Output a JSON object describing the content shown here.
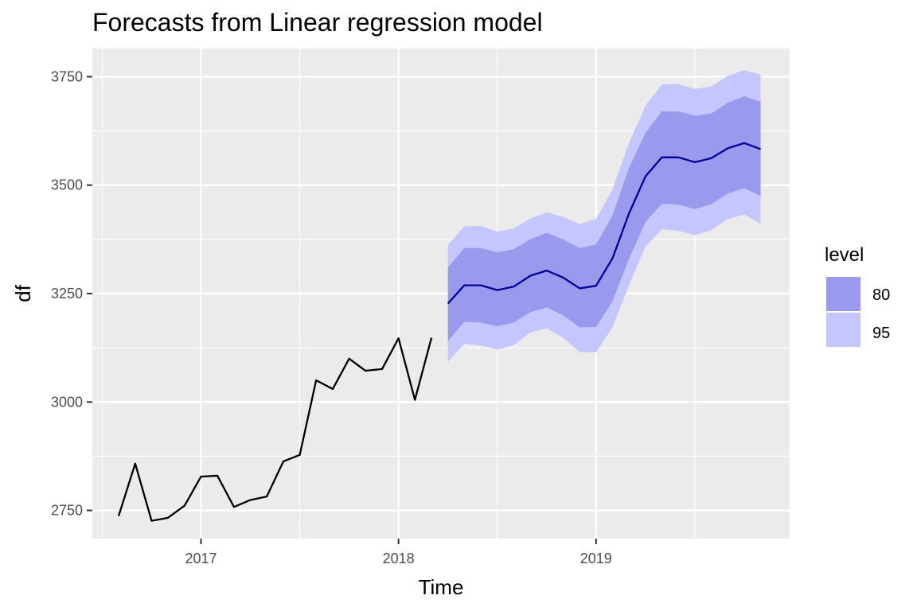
{
  "chart_data": {
    "type": "line",
    "title": "Forecasts from Linear regression model",
    "xlabel": "Time",
    "ylabel": "df",
    "xlim": [
      2016.45,
      2019.98
    ],
    "ylim": [
      2685,
      3815
    ],
    "x_ticks": [
      {
        "value": 2017,
        "label": "2017"
      },
      {
        "value": 2018,
        "label": "2018"
      },
      {
        "value": 2019,
        "label": "2019"
      }
    ],
    "y_ticks": [
      {
        "value": 2750,
        "label": "2750"
      },
      {
        "value": 3000,
        "label": "3000"
      },
      {
        "value": 3250,
        "label": "3250"
      },
      {
        "value": 3500,
        "label": "3500"
      },
      {
        "value": 3750,
        "label": "3750"
      }
    ],
    "grid": true,
    "legend": {
      "title": "level",
      "position": "right",
      "entries": [
        {
          "label": "80",
          "color": "#9999ee"
        },
        {
          "label": "95",
          "color": "#c5c5ff"
        }
      ]
    },
    "colors": {
      "panel": "#ebebeb",
      "grid": "#ffffff",
      "history": "#000000",
      "forecast": "#000099",
      "band80": "#9999ee",
      "band95": "#c5c5ff"
    },
    "history": {
      "x": [
        2016.583,
        2016.667,
        2016.75,
        2016.833,
        2016.917,
        2017.0,
        2017.083,
        2017.167,
        2017.25,
        2017.333,
        2017.417,
        2017.5,
        2017.583,
        2017.667,
        2017.75,
        2017.833,
        2017.917,
        2018.0,
        2018.083,
        2018.167
      ],
      "y": [
        2737,
        2858,
        2726,
        2733,
        2761,
        2828,
        2830,
        2758,
        2774,
        2782,
        2863,
        2878,
        3050,
        3030,
        3100,
        3072,
        3076,
        3147,
        3005,
        3148
      ]
    },
    "forecast": {
      "x": [
        2018.25,
        2018.333,
        2018.417,
        2018.5,
        2018.583,
        2018.667,
        2018.75,
        2018.833,
        2018.917,
        2019.0,
        2019.083,
        2019.167,
        2019.25,
        2019.333,
        2019.417,
        2019.5,
        2019.583,
        2019.667,
        2019.75,
        2019.833
      ],
      "mean": [
        3227,
        3269,
        3269,
        3258,
        3266,
        3291,
        3303,
        3287,
        3262,
        3268,
        3331,
        3435,
        3520,
        3564,
        3564,
        3553,
        3562,
        3585,
        3597,
        3583
      ],
      "lo80": [
        3140,
        3185,
        3183,
        3175,
        3183,
        3207,
        3218,
        3200,
        3172,
        3173,
        3232,
        3330,
        3415,
        3457,
        3455,
        3445,
        3456,
        3481,
        3493,
        3475
      ],
      "hi80": [
        3310,
        3355,
        3355,
        3345,
        3352,
        3375,
        3390,
        3375,
        3355,
        3363,
        3430,
        3540,
        3620,
        3670,
        3670,
        3660,
        3665,
        3690,
        3705,
        3692
      ],
      "lo95": [
        3093,
        3134,
        3130,
        3121,
        3131,
        3160,
        3170,
        3148,
        3115,
        3115,
        3172,
        3270,
        3358,
        3398,
        3395,
        3385,
        3396,
        3422,
        3432,
        3411
      ],
      "hi95": [
        3362,
        3405,
        3406,
        3393,
        3400,
        3423,
        3437,
        3427,
        3410,
        3422,
        3490,
        3598,
        3683,
        3732,
        3733,
        3722,
        3727,
        3752,
        3765,
        3755
      ]
    }
  }
}
